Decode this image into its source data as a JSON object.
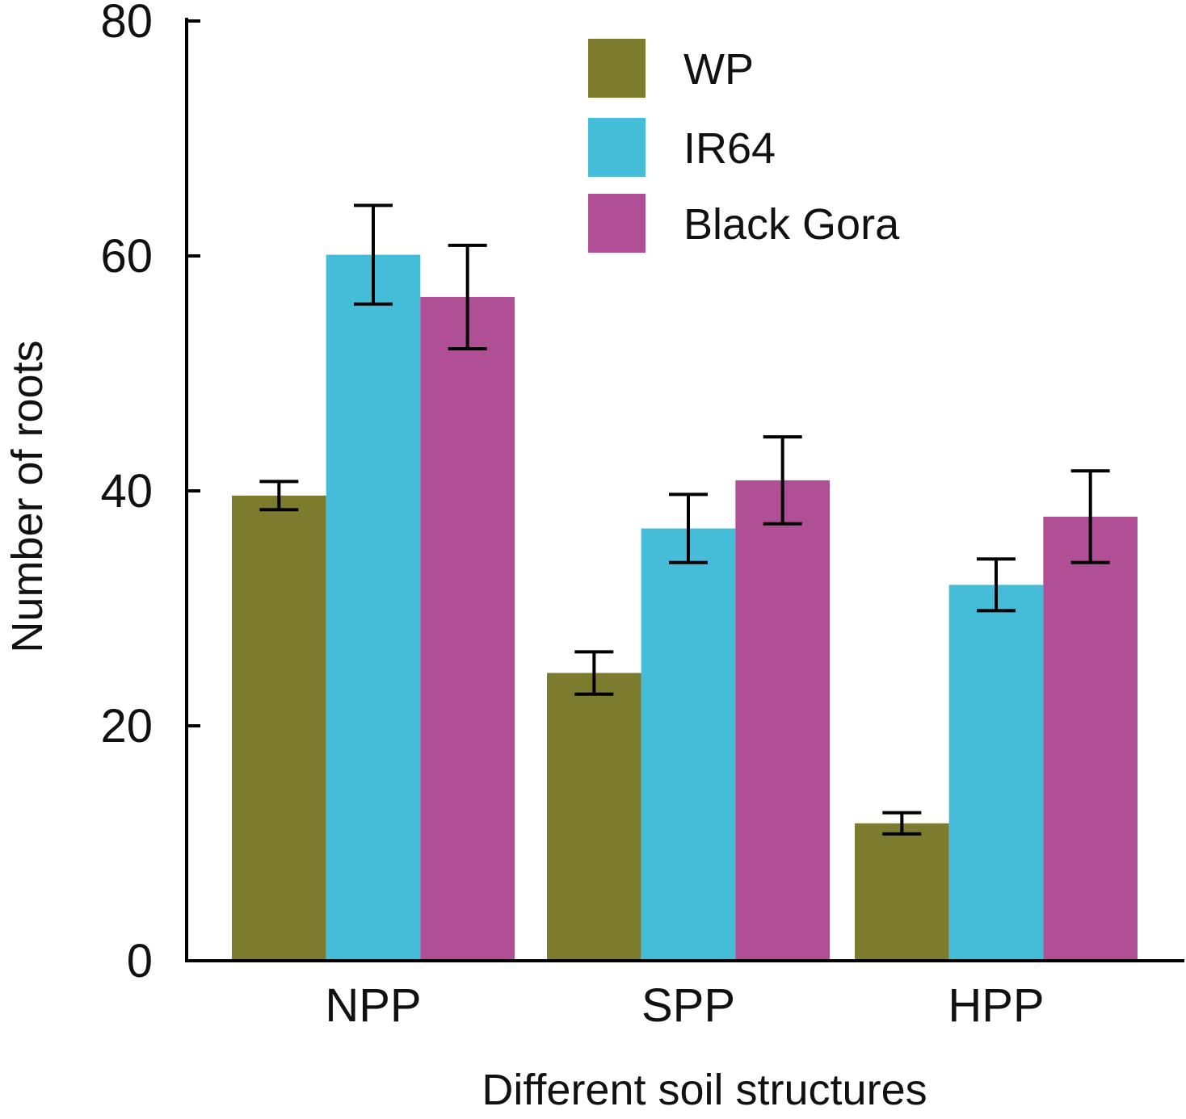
{
  "chart_data": {
    "type": "bar",
    "categories": [
      "NPP",
      "SPP",
      "HPP"
    ],
    "series": [
      {
        "name": "WP",
        "color": "#7d7c2e",
        "values": [
          39.6,
          24.5,
          11.7
        ],
        "errors": [
          1.2,
          1.8,
          0.9
        ]
      },
      {
        "name": "IR64",
        "color": "#45bdd8",
        "values": [
          60.1,
          36.8,
          32.0
        ],
        "errors": [
          4.2,
          2.9,
          2.2
        ]
      },
      {
        "name": "Black Gora",
        "color": "#b04e96",
        "values": [
          56.5,
          40.9,
          37.8
        ],
        "errors": [
          4.4,
          3.7,
          3.9
        ]
      }
    ],
    "ylim": [
      0,
      80
    ],
    "yticks": [
      "0",
      "20",
      "40",
      "60",
      "80"
    ],
    "xlabel": "Different soil structures",
    "ylabel": "Number of roots",
    "legend_position": "top-right",
    "grid": false
  }
}
